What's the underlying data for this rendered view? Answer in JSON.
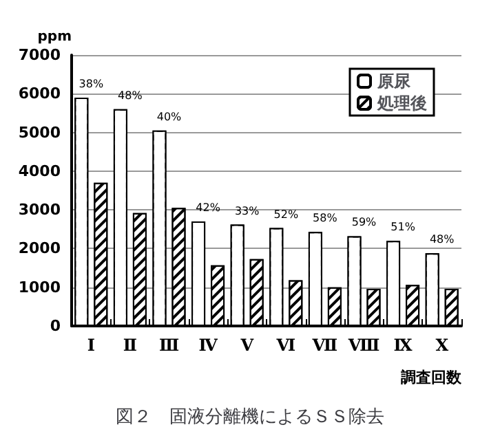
{
  "chart_data": {
    "type": "bar",
    "title": "図２　固液分離機によるＳＳ除去",
    "ylabel": "ppm",
    "xlabel": "調査回数",
    "categories": [
      "Ⅰ",
      "Ⅱ",
      "Ⅲ",
      "Ⅳ",
      "Ⅴ",
      "Ⅵ",
      "Ⅶ",
      "Ⅷ",
      "Ⅸ",
      "Ⅹ"
    ],
    "series": [
      {
        "name": "原尿",
        "color": "#ffffff",
        "values": [
          5900,
          5600,
          5050,
          2700,
          2620,
          2530,
          2430,
          2320,
          2200,
          1880
        ]
      },
      {
        "name": "処理後",
        "color": "#000000",
        "values": [
          3700,
          2920,
          3050,
          1570,
          1730,
          1180,
          1000,
          960,
          1060,
          960
        ]
      }
    ],
    "annotations": [
      "38%",
      "48%",
      "40%",
      "42%",
      "33%",
      "52%",
      "58%",
      "59%",
      "51%",
      "48%"
    ],
    "ylim": [
      0,
      7000
    ],
    "yticks": [
      0,
      1000,
      2000,
      3000,
      4000,
      5000,
      6000,
      7000
    ],
    "grid": "y",
    "legend": "top right"
  }
}
